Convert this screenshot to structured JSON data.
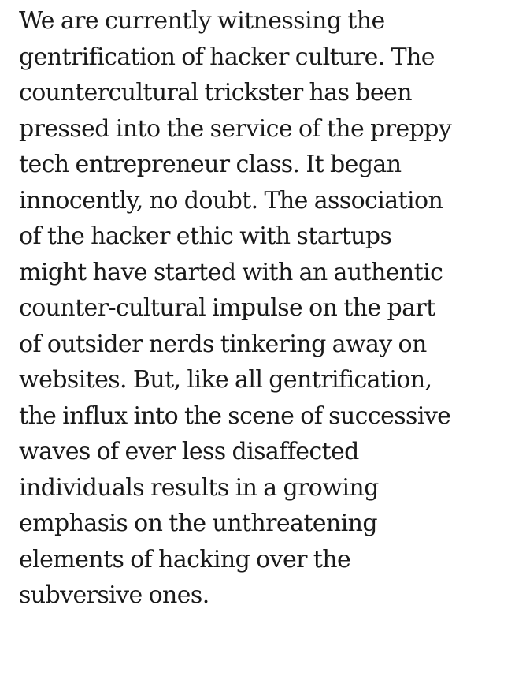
{
  "passage": {
    "lines": [
      "We are currently witnessing the",
      "gentrification of hacker culture. The",
      "countercultural trickster has been",
      "pressed into the service of the preppy",
      "tech entrepreneur class. It began",
      "innocently, no doubt. The association",
      "of the hacker ethic with startups",
      "might have started with an authentic",
      "counter-cultural impulse on the part",
      "of outsider nerds tinkering away on",
      "websites. But, like all gentrification,",
      "the influx into the scene of successive",
      "waves of ever less disaffected",
      "individuals results in a growing",
      "emphasis on the unthreatening",
      "elements of hacking over the",
      "subversive ones."
    ],
    "text_color": "#1a1a1a",
    "background_color": "#ffffff"
  }
}
